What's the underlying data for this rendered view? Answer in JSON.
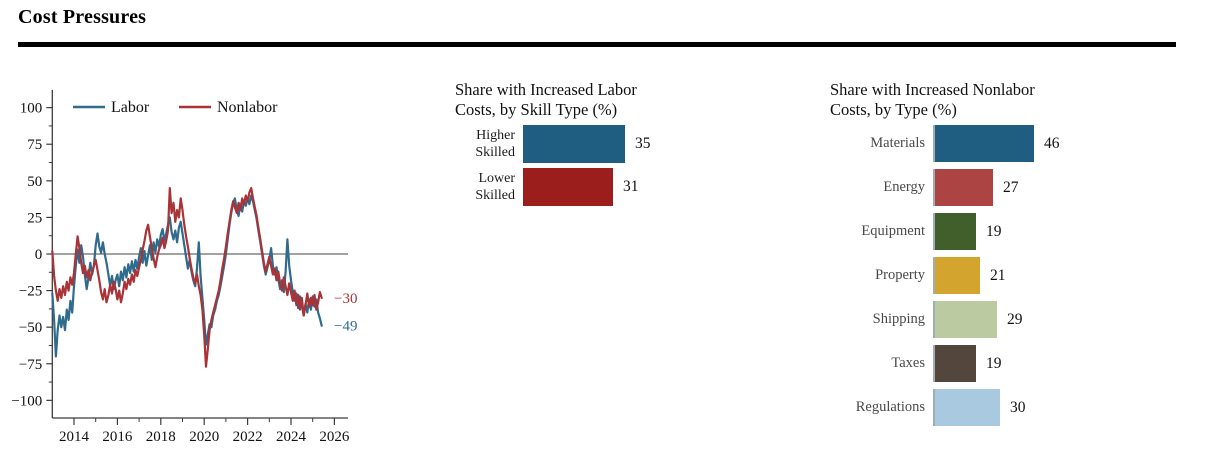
{
  "header": {
    "title": "Cost Pressures"
  },
  "colors": {
    "labor_blue": "#2f6b8c",
    "nonlabor_red": "#a93336",
    "bar_blue": "#1f5e81",
    "bar_dark_red": "#9b1d1c",
    "axis_gray": "#3c3c3c",
    "bar_axis_line": "#9fadb5"
  },
  "chart_data": [
    {
      "type": "line",
      "title": "",
      "x_start": 2013.0,
      "x_frequency": "monthly",
      "xlim": [
        2013,
        2026.6
      ],
      "ylim": [
        -100,
        100
      ],
      "y_ticks": [
        100,
        75,
        50,
        25,
        0,
        -25,
        -50,
        -75,
        -100
      ],
      "y_tick_labels": [
        "100",
        "75",
        "50",
        "25",
        "0",
        "−25",
        "−50",
        "−75",
        "−100"
      ],
      "y_minor_step": 12.5,
      "x_ticks": [
        2014,
        2016,
        2018,
        2020,
        2022,
        2024,
        2026
      ],
      "x_minor_ticks": [
        2015,
        2017,
        2019,
        2021,
        2023,
        2025
      ],
      "zero_line": true,
      "grid": false,
      "legend_position": "top-left-inside",
      "series": [
        {
          "name": "Labor",
          "color": "#2f6b8c",
          "values": [
            -27,
            -45,
            -70,
            -52,
            -42,
            -50,
            -43,
            -52,
            -38,
            -45,
            -32,
            -40,
            -22,
            -8,
            3,
            -6,
            6,
            -2,
            -14,
            -24,
            -16,
            -6,
            -14,
            -8,
            6,
            14,
            5,
            1,
            8,
            0,
            -6,
            -14,
            -22,
            -15,
            -24,
            -18,
            -14,
            -22,
            -12,
            -18,
            -9,
            -16,
            -7,
            -13,
            -5,
            -12,
            -4,
            -10,
            -2,
            4,
            -6,
            2,
            -8,
            -1,
            6,
            -4,
            8,
            1,
            10,
            5,
            13,
            17,
            9,
            14,
            20,
            25,
            15,
            10,
            16,
            8,
            18,
            22,
            14,
            6,
            -2,
            -10,
            -4,
            -12,
            -18,
            -22,
            -10,
            8,
            -15,
            -30,
            -45,
            -62,
            -55,
            -48,
            -50,
            -42,
            -38,
            -32,
            -28,
            -22,
            -15,
            -8,
            0,
            10,
            20,
            28,
            35,
            38,
            30,
            26,
            34,
            29,
            36,
            33,
            38,
            34,
            40,
            36,
            30,
            24,
            16,
            8,
            0,
            -8,
            -14,
            -9,
            -4,
            4,
            -8,
            -14,
            -9,
            -17,
            -24,
            -18,
            -26,
            -12,
            10,
            -8,
            -18,
            -26,
            -32,
            -27,
            -37,
            -29,
            -35,
            -42,
            -34,
            -40,
            -31,
            -38,
            -29,
            -36,
            -31,
            -40,
            -44,
            -49
          ]
        },
        {
          "name": "Nonlabor",
          "color": "#a93336",
          "values": [
            2,
            -15,
            -25,
            -32,
            -24,
            -30,
            -22,
            -28,
            -19,
            -25,
            -16,
            -21,
            -13,
            0,
            12,
            4,
            -6,
            -13,
            -8,
            -16,
            -11,
            -18,
            -12,
            -8,
            -4,
            -11,
            -18,
            -26,
            -31,
            -24,
            -33,
            -28,
            -21,
            -27,
            -19,
            -24,
            -31,
            -25,
            -33,
            -27,
            -19,
            -24,
            -17,
            -21,
            -14,
            -19,
            -11,
            -15,
            -9,
            -4,
            3,
            9,
            16,
            20,
            12,
            4,
            -3,
            -9,
            -2,
            3,
            6,
            11,
            4,
            9,
            16,
            45,
            28,
            35,
            22,
            30,
            25,
            38,
            30,
            20,
            12,
            5,
            -3,
            -10,
            -16,
            -20,
            -14,
            -22,
            -28,
            -38,
            -55,
            -77,
            -65,
            -52,
            -45,
            -40,
            -35,
            -30,
            -25,
            -18,
            -10,
            -3,
            5,
            14,
            22,
            30,
            36,
            32,
            28,
            35,
            30,
            38,
            34,
            40,
            36,
            42,
            45,
            38,
            32,
            26,
            18,
            10,
            2,
            -6,
            -12,
            -7,
            -2,
            -8,
            -14,
            -10,
            -18,
            -12,
            -20,
            -25,
            -16,
            -22,
            -28,
            -20,
            -26,
            -32,
            -25,
            -35,
            -28,
            -38,
            -30,
            -42,
            -35,
            -27,
            -36,
            -30,
            -35,
            -28,
            -38,
            -33,
            -26,
            -30
          ]
        }
      ],
      "end_labels": [
        {
          "text": "−30",
          "value": -30,
          "series": "Nonlabor",
          "color": "#a93336"
        },
        {
          "text": "−49",
          "value": -49,
          "series": "Labor",
          "color": "#2f6b8c"
        }
      ]
    },
    {
      "type": "bar",
      "orientation": "horizontal",
      "title_lines": [
        "Share with Increased Labor",
        "Costs, by Skill Type (%)"
      ],
      "categories": [
        "Higher Skilled",
        "Lower Skilled"
      ],
      "category_label_lines": [
        [
          "Higher",
          "Skilled"
        ],
        [
          "Lower",
          "Skilled"
        ]
      ],
      "values": [
        35,
        31
      ],
      "bar_colors": [
        "#1f5e81",
        "#9b1d1c"
      ],
      "value_labels": [
        "35",
        "31"
      ],
      "axis_line": false
    },
    {
      "type": "bar",
      "orientation": "horizontal",
      "title_lines": [
        "Share with Increased Nonlabor",
        "Costs, by Type (%)"
      ],
      "categories": [
        "Materials",
        "Energy",
        "Equipment",
        "Property",
        "Shipping",
        "Taxes",
        "Regulations"
      ],
      "values": [
        46,
        27,
        19,
        21,
        29,
        19,
        30
      ],
      "bar_colors": [
        "#1f5e81",
        "#ac4443",
        "#405f2b",
        "#d3a52f",
        "#bccaa2",
        "#52463d",
        "#a8c9e0"
      ],
      "value_labels": [
        "46",
        "27",
        "19",
        "21",
        "29",
        "19",
        "30"
      ],
      "axis_line": true
    }
  ]
}
